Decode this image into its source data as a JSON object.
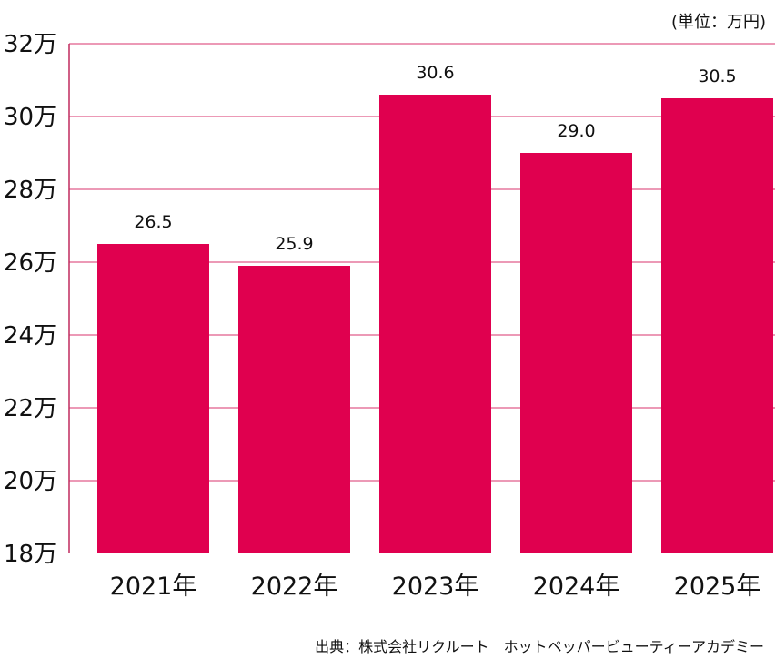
{
  "chart_data": {
    "type": "bar",
    "categories": [
      "2021年",
      "2022年",
      "2023年",
      "2024年",
      "2025年"
    ],
    "values": [
      26.5,
      25.9,
      30.6,
      29.0,
      30.5
    ],
    "data_labels": [
      "26.5",
      "25.9",
      "30.6",
      "29.0",
      "30.5"
    ],
    "y_ticks": [
      18,
      20,
      22,
      24,
      26,
      28,
      30,
      32
    ],
    "y_tick_labels": [
      "18万",
      "20万",
      "22万",
      "24万",
      "26万",
      "28万",
      "30万",
      "32万"
    ],
    "ylim": [
      18,
      32
    ],
    "grid": true,
    "unit_note": "(単位：万円)",
    "source": "出典：株式会社リクルート　ホットペッパービューティーアカデミー",
    "colors": {
      "bar": "#e0004f",
      "grid": "#d8336d",
      "axis": "#c02a5e"
    }
  }
}
